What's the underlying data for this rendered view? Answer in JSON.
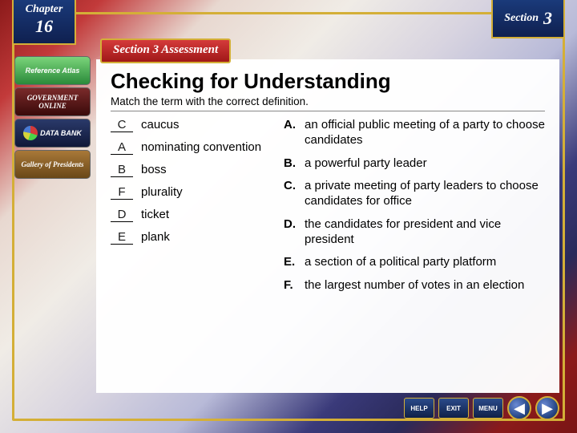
{
  "colors": {
    "gold": "#d4af37",
    "navy": "#1a3a7a",
    "red": "#a01818",
    "panel_bg": "rgba(255,255,255,0.97)"
  },
  "chapter": {
    "label": "Chapter",
    "number": "16"
  },
  "section": {
    "label": "Section",
    "number": "3"
  },
  "assessment_label": "Section 3 Assessment",
  "sidebar": [
    {
      "name": "reference-atlas",
      "label": "Reference Atlas"
    },
    {
      "name": "government-online",
      "label": "GOVERNMENT ONLINE"
    },
    {
      "name": "data-bank",
      "label": "DATA BANK"
    },
    {
      "name": "gallery-presidents",
      "label": "Gallery of Presidents"
    }
  ],
  "title": "Checking for Understanding",
  "instruction": "Match the term with the correct definition.",
  "terms": [
    {
      "answer": "C",
      "term": "caucus"
    },
    {
      "answer": "A",
      "term": "nominating convention"
    },
    {
      "answer": "B",
      "term": "boss"
    },
    {
      "answer": "F",
      "term": "plurality"
    },
    {
      "answer": "D",
      "term": "ticket"
    },
    {
      "answer": "E",
      "term": "plank"
    }
  ],
  "definitions": [
    {
      "letter": "A.",
      "text": "an official public meeting of a party to choose candidates"
    },
    {
      "letter": "B.",
      "text": "a powerful party leader"
    },
    {
      "letter": "C.",
      "text": "a private meeting of party leaders to choose candidates for office"
    },
    {
      "letter": "D.",
      "text": "the candidates for president and vice president"
    },
    {
      "letter": "E.",
      "text": "a section of a political party platform"
    },
    {
      "letter": "F.",
      "text": "the largest number of votes in an election"
    }
  ],
  "nav": {
    "help": "HELP",
    "exit": "EXIT",
    "menu": "MENU",
    "back": "◀",
    "forward": "▶"
  }
}
